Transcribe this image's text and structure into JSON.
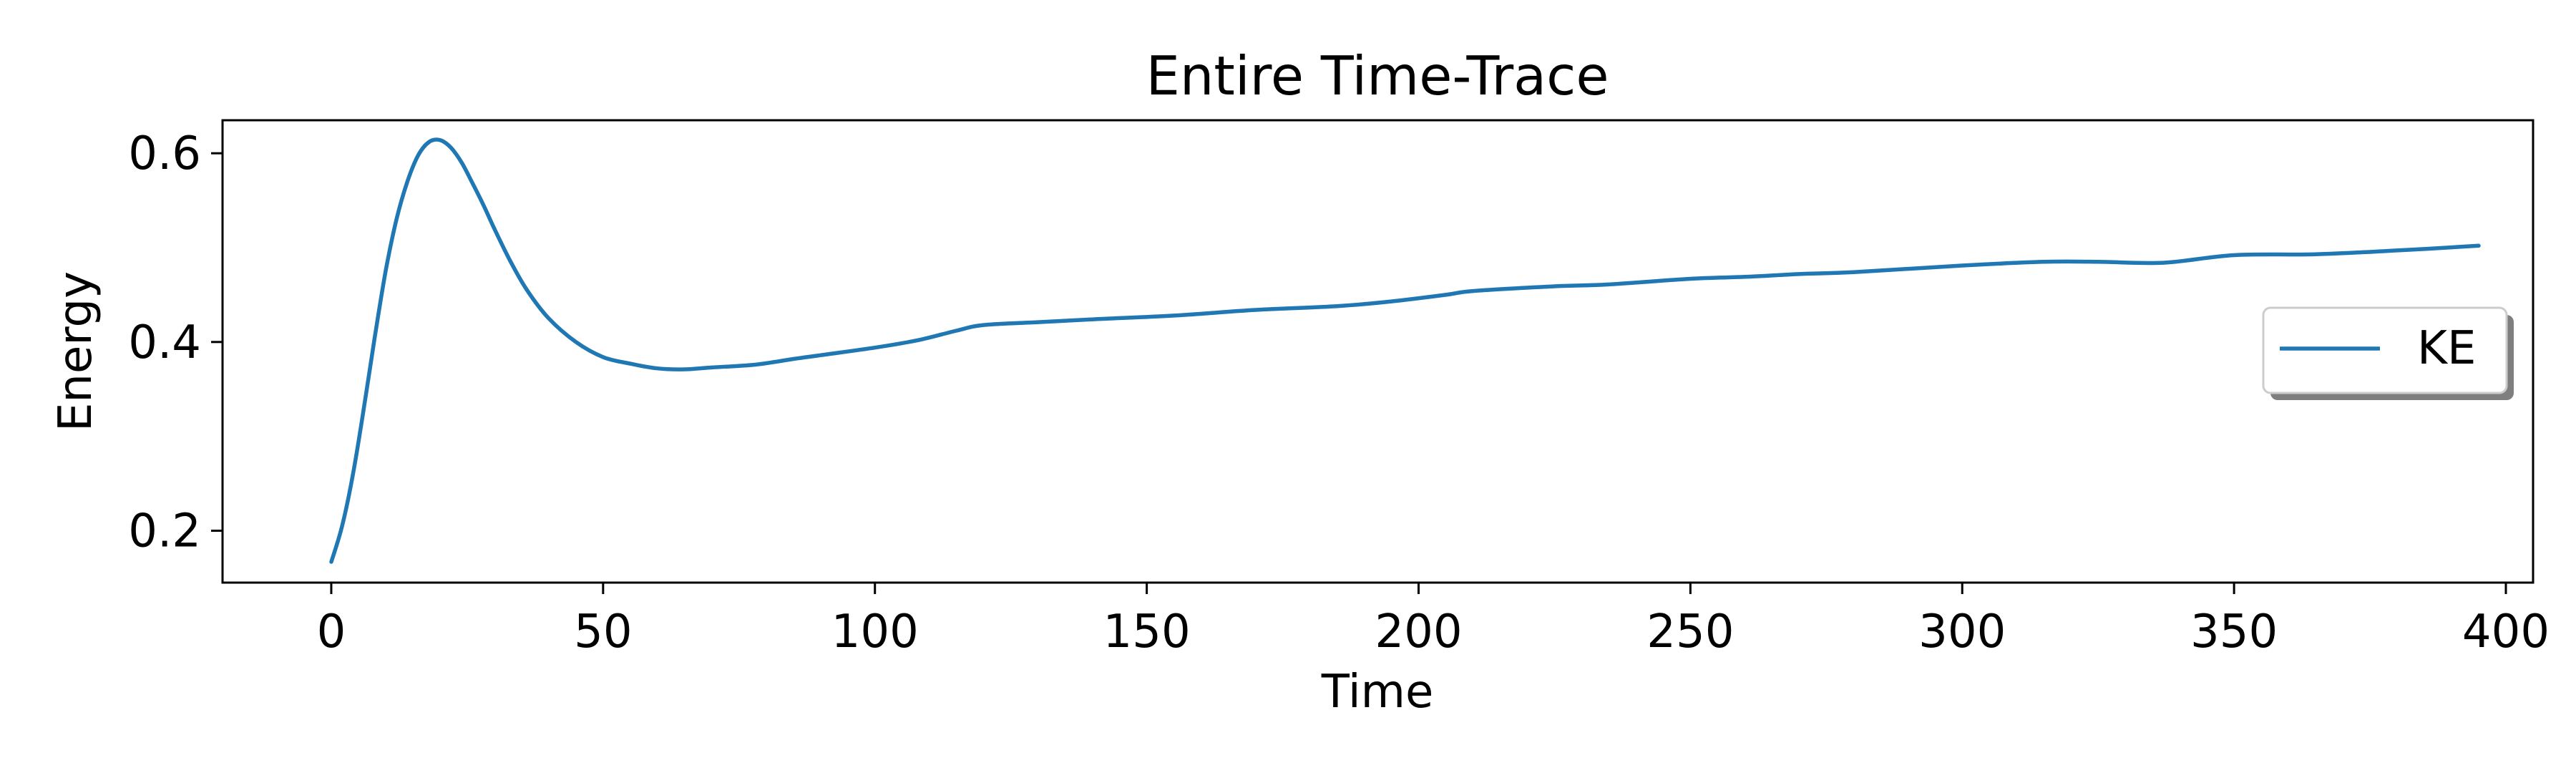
{
  "chart_data": {
    "type": "line",
    "title": "Entire Time-Trace",
    "xlabel": "Time",
    "ylabel": "Energy",
    "xlim": [
      -20,
      405
    ],
    "ylim": [
      0.145,
      0.635
    ],
    "xticks": [
      0,
      50,
      100,
      150,
      200,
      250,
      300,
      350,
      400
    ],
    "xtick_labels": [
      "0",
      "50",
      "100",
      "150",
      "200",
      "250",
      "300",
      "350",
      "400"
    ],
    "yticks": [
      0.2,
      0.4,
      0.6
    ],
    "ytick_labels": [
      "0.2",
      "0.4",
      "0.6"
    ],
    "grid": false,
    "legend_position": "center-right",
    "series": [
      {
        "name": "KE",
        "color": "#1f77b4",
        "x": [
          0,
          2,
          4,
          6,
          8,
          10,
          12,
          14,
          16,
          18,
          20,
          22,
          24,
          26,
          28,
          30,
          33,
          36,
          40,
          45,
          50,
          55,
          60,
          65,
          70,
          78,
          85,
          90,
          100,
          108,
          115,
          120,
          130,
          140,
          155,
          170,
          185,
          195,
          205,
          210,
          225,
          235,
          250,
          260,
          270,
          280,
          300,
          315,
          325,
          337,
          350,
          365,
          380,
          395
        ],
        "values": [
          0.167,
          0.205,
          0.26,
          0.33,
          0.405,
          0.475,
          0.53,
          0.57,
          0.598,
          0.612,
          0.614,
          0.606,
          0.59,
          0.568,
          0.545,
          0.52,
          0.485,
          0.455,
          0.425,
          0.4,
          0.384,
          0.377,
          0.372,
          0.371,
          0.373,
          0.376,
          0.382,
          0.386,
          0.394,
          0.402,
          0.412,
          0.418,
          0.421,
          0.424,
          0.428,
          0.434,
          0.438,
          0.443,
          0.45,
          0.454,
          0.459,
          0.461,
          0.467,
          0.469,
          0.472,
          0.474,
          0.481,
          0.485,
          0.485,
          0.484,
          0.492,
          0.493,
          0.497,
          0.502
        ]
      }
    ]
  }
}
